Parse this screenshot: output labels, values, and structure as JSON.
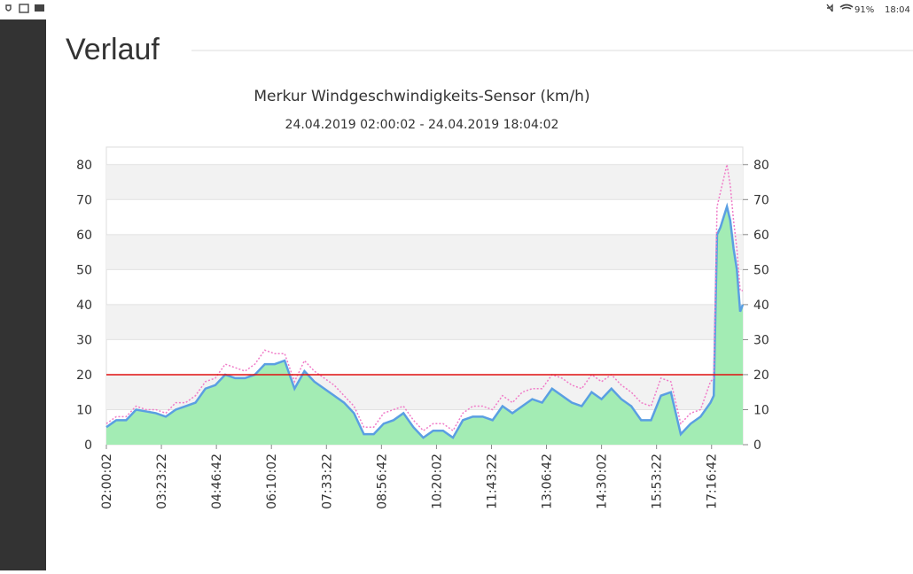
{
  "status_bar": {
    "battery": "91%",
    "time": "18:04"
  },
  "heading": "Verlauf",
  "chart_data": {
    "type": "line",
    "title": "Merkur Windgeschwindigkeits-Sensor (km/h)",
    "subtitle": "24.04.2019 02:00:02 - 24.04.2019 18:04:02",
    "x": [
      "02:00:02",
      "02:15:02",
      "02:30:02",
      "02:45:02",
      "03:00:02",
      "03:15:02",
      "03:30:02",
      "03:45:02",
      "04:00:02",
      "04:15:02",
      "04:30:02",
      "04:45:02",
      "05:00:02",
      "05:15:02",
      "05:30:02",
      "05:45:02",
      "06:00:02",
      "06:15:02",
      "06:30:02",
      "06:45:02",
      "07:00:02",
      "07:15:02",
      "07:30:02",
      "07:45:02",
      "08:00:02",
      "08:15:02",
      "08:30:02",
      "08:45:02",
      "09:00:02",
      "09:15:02",
      "09:30:02",
      "09:45:02",
      "10:00:02",
      "10:15:02",
      "10:30:02",
      "10:45:02",
      "11:00:02",
      "11:15:02",
      "11:30:02",
      "11:45:02",
      "12:00:02",
      "12:15:02",
      "12:30:02",
      "12:45:02",
      "13:00:02",
      "13:15:02",
      "13:30:02",
      "13:45:02",
      "14:00:02",
      "14:15:02",
      "14:30:02",
      "14:45:02",
      "15:00:02",
      "15:15:02",
      "15:30:02",
      "15:45:02",
      "16:00:02",
      "16:15:02",
      "16:30:02",
      "16:45:02",
      "17:00:02",
      "17:15:02",
      "17:20:02",
      "17:25:02",
      "17:30:02",
      "17:35:02",
      "17:40:02",
      "17:45:02",
      "17:50:02",
      "17:55:02",
      "18:00:02",
      "18:04:02"
    ],
    "series": [
      {
        "color": "#5a9fe2",
        "fill": "#a3ecb4",
        "values": [
          5,
          7,
          7,
          10,
          9.5,
          9,
          8,
          10,
          11,
          12,
          16,
          17,
          20,
          19,
          19,
          20,
          23,
          23,
          24,
          16,
          21,
          18,
          16,
          14,
          12,
          9,
          3,
          3,
          6,
          7,
          9,
          5,
          2,
          4,
          4,
          2,
          7,
          8,
          8,
          7,
          11,
          9,
          11,
          13,
          12,
          16,
          14,
          12,
          11,
          15,
          13,
          16,
          13,
          11,
          7,
          7,
          14,
          15,
          3,
          6,
          8,
          12,
          14,
          60,
          62,
          65,
          68,
          64,
          56,
          50,
          38,
          40
        ]
      },
      {
        "color": "#f07cc8",
        "dashed": true,
        "values": [
          6,
          8,
          8,
          11,
          10,
          10,
          9,
          12,
          12,
          14,
          18,
          19,
          23,
          22,
          21,
          23,
          27,
          26,
          26,
          18,
          24,
          21,
          19,
          17,
          14,
          11,
          5,
          5,
          9,
          10,
          11,
          7,
          4,
          6,
          6,
          4,
          9,
          11,
          11,
          10,
          14,
          12,
          15,
          16,
          16,
          20,
          19,
          17,
          16,
          20,
          18,
          20,
          17,
          15,
          12,
          11,
          19,
          18,
          6,
          9,
          10,
          18,
          19,
          68,
          72,
          76,
          80,
          74,
          64,
          56,
          44,
          44
        ]
      }
    ],
    "threshold": {
      "value": 20,
      "color": "#e01010"
    },
    "xlim": [
      "02:00:02",
      "18:04:02"
    ],
    "xticks": [
      "02:00:02",
      "03:23:22",
      "04:46:42",
      "06:10:02",
      "07:33:22",
      "08:56:42",
      "10:20:02",
      "11:43:22",
      "13:06:42",
      "14:30:02",
      "15:53:22",
      "17:16:42"
    ],
    "ylim": [
      0,
      85
    ],
    "yticks": [
      0,
      10,
      20,
      30,
      40,
      50,
      60,
      70,
      80
    ],
    "grid": true
  }
}
